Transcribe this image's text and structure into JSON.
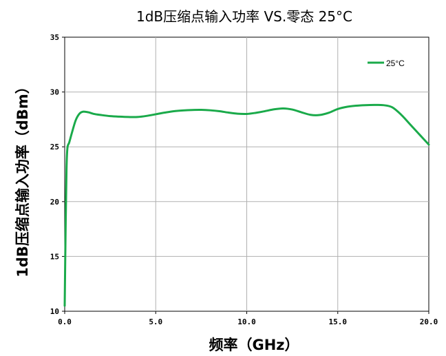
{
  "chart_data": {
    "type": "line",
    "title": "1dB压缩点输入功率 VS.零态 25°C",
    "xlabel": "频率（GHz）",
    "ylabel": "1dB压缩点输入功率（dBm）",
    "xlim": [
      0,
      20
    ],
    "ylim": [
      10,
      35
    ],
    "xticks": [
      0,
      5,
      10,
      15,
      20
    ],
    "xtick_labels": [
      "0.0",
      "5.0",
      "10.0",
      "15.0",
      "20.0"
    ],
    "yticks": [
      10,
      15,
      20,
      25,
      30,
      35
    ],
    "ytick_labels": [
      "10",
      "15",
      "20",
      "25",
      "30",
      "35"
    ],
    "grid": true,
    "legend_position": "top-right",
    "series": [
      {
        "name": "25°C",
        "color": "#1aaa4a",
        "x": [
          0.0,
          0.05,
          0.1,
          0.15,
          0.25,
          0.4,
          0.6,
          0.8,
          1.0,
          1.3,
          1.6,
          2.0,
          2.5,
          3.0,
          3.5,
          4.0,
          4.5,
          5.0,
          5.5,
          6.0,
          6.5,
          7.0,
          7.5,
          8.0,
          8.5,
          9.0,
          9.5,
          10.0,
          10.5,
          11.0,
          11.5,
          12.0,
          12.5,
          13.0,
          13.5,
          14.0,
          14.5,
          15.0,
          15.5,
          16.0,
          16.5,
          17.0,
          17.5,
          18.0,
          18.5,
          19.0,
          19.5,
          20.0
        ],
        "y": [
          10.5,
          17.5,
          23.0,
          24.9,
          25.4,
          26.3,
          27.4,
          28.0,
          28.2,
          28.15,
          28.0,
          27.9,
          27.8,
          27.75,
          27.72,
          27.72,
          27.82,
          27.97,
          28.12,
          28.25,
          28.32,
          28.36,
          28.37,
          28.33,
          28.25,
          28.12,
          28.02,
          28.0,
          28.1,
          28.25,
          28.42,
          28.5,
          28.4,
          28.15,
          27.92,
          27.9,
          28.1,
          28.45,
          28.65,
          28.75,
          28.8,
          28.82,
          28.8,
          28.6,
          27.9,
          27.0,
          26.1,
          25.2
        ]
      }
    ]
  }
}
